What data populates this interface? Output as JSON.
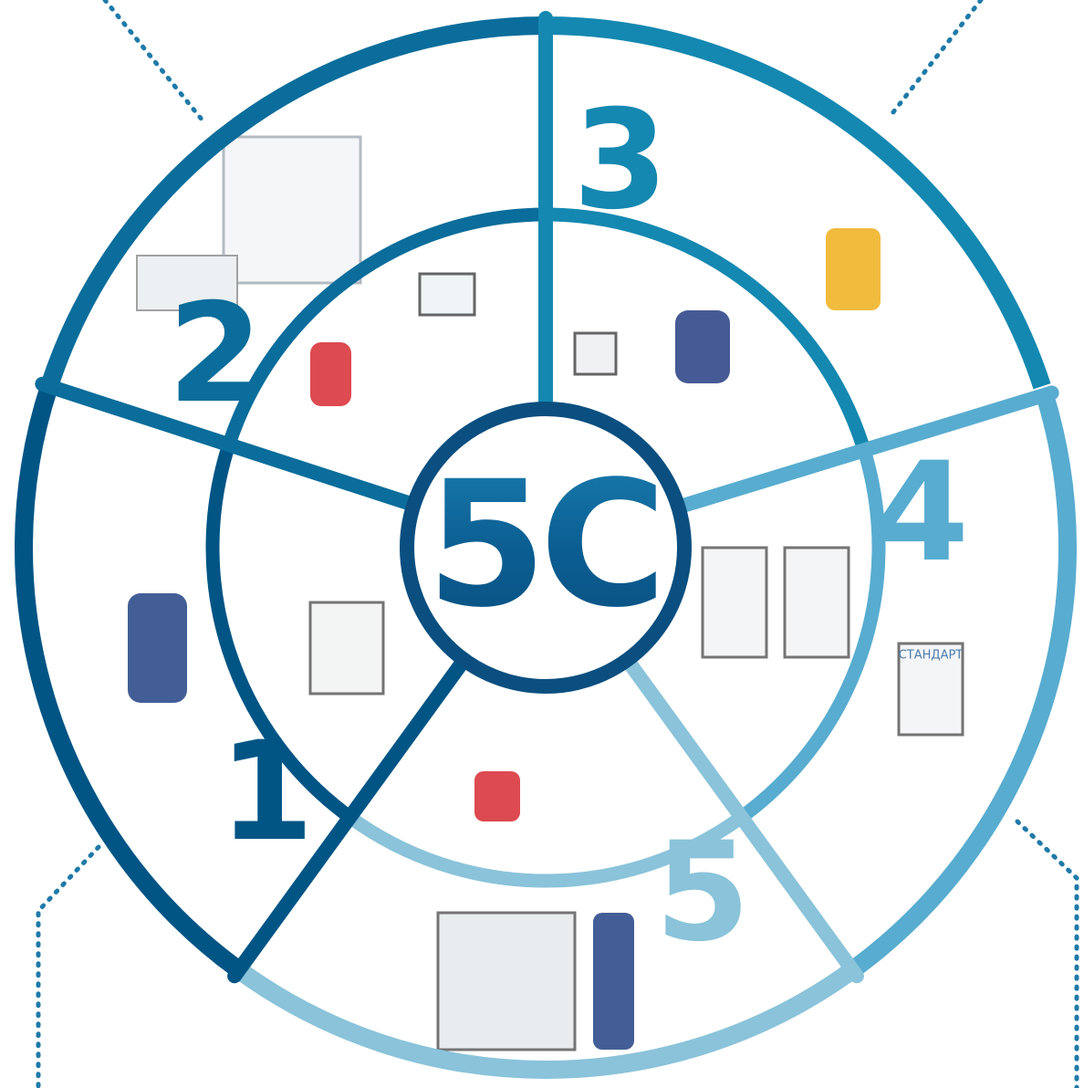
{
  "center_label": "5C",
  "segments": [
    {
      "number": "1"
    },
    {
      "number": "2"
    },
    {
      "number": "3"
    },
    {
      "number": "4"
    },
    {
      "number": "5"
    }
  ],
  "sign_text": "СТАНДАРТ"
}
